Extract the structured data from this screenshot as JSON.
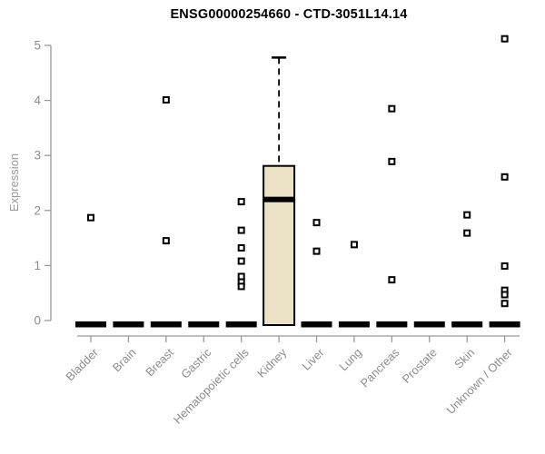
{
  "chart_data": {
    "type": "boxplot",
    "title": "ENSG00000254660 - CTD-3051L14.14",
    "ylabel": "Expression",
    "ylim": [
      0,
      5
    ],
    "yticks": [
      0,
      1,
      2,
      3,
      4,
      5
    ],
    "grid": false,
    "legend": "none",
    "categories": [
      "Bladder",
      "Brain",
      "Breast",
      "Gastric",
      "Hematopoietic cells",
      "Kidney",
      "Liver",
      "Lung",
      "Pancreas",
      "Prostate",
      "Skin",
      "Unknown / Other"
    ],
    "boxes": [
      {
        "category": "Bladder",
        "q1": 0,
        "median": 0,
        "q3": 0,
        "whisker_low": 0,
        "whisker_high": 0,
        "outliers": [
          1.87
        ]
      },
      {
        "category": "Brain",
        "q1": 0,
        "median": 0,
        "q3": 0,
        "whisker_low": 0,
        "whisker_high": 0,
        "outliers": []
      },
      {
        "category": "Breast",
        "q1": 0,
        "median": 0,
        "q3": 0,
        "whisker_low": 0,
        "whisker_high": 0,
        "outliers": [
          4.01,
          1.45
        ]
      },
      {
        "category": "Gastric",
        "q1": 0,
        "median": 0,
        "q3": 0,
        "whisker_low": 0,
        "whisker_high": 0,
        "outliers": []
      },
      {
        "category": "Hematopoietic cells",
        "q1": 0,
        "median": 0,
        "q3": 0,
        "whisker_low": 0,
        "whisker_high": 0,
        "outliers": [
          2.16,
          1.64,
          1.32,
          1.08,
          0.8,
          0.7,
          0.62
        ]
      },
      {
        "category": "Kidney",
        "q1": 0,
        "median": 2.2,
        "q3": 2.81,
        "whisker_low": 0,
        "whisker_high": 4.78,
        "outliers": []
      },
      {
        "category": "Liver",
        "q1": 0,
        "median": 0,
        "q3": 0,
        "whisker_low": 0,
        "whisker_high": 0,
        "outliers": [
          1.78,
          1.26
        ]
      },
      {
        "category": "Lung",
        "q1": 0,
        "median": 0,
        "q3": 0,
        "whisker_low": 0,
        "whisker_high": 0,
        "outliers": [
          1.38
        ]
      },
      {
        "category": "Pancreas",
        "q1": 0,
        "median": 0,
        "q3": 0,
        "whisker_low": 0,
        "whisker_high": 0,
        "outliers": [
          3.85,
          2.89,
          0.74
        ]
      },
      {
        "category": "Prostate",
        "q1": 0,
        "median": 0,
        "q3": 0,
        "whisker_low": 0,
        "whisker_high": 0,
        "outliers": []
      },
      {
        "category": "Skin",
        "q1": 0,
        "median": 0,
        "q3": 0,
        "whisker_low": 0,
        "whisker_high": 0,
        "outliers": [
          1.92,
          1.59
        ]
      },
      {
        "category": "Unknown / Other",
        "q1": 0,
        "median": 0,
        "q3": 0,
        "whisker_low": 0,
        "whisker_high": 0,
        "outliers": [
          5.12,
          2.61,
          0.99,
          0.55,
          0.47,
          0.31
        ]
      }
    ],
    "colors": {
      "box_fill": "#ece3c7",
      "box_stroke": "#000000",
      "median": "#000000",
      "outlier_stroke": "#000000",
      "axis_line": "#999999",
      "tick_label": "#8c8c8c",
      "title": "#000000",
      "background": "#ffffff"
    }
  }
}
